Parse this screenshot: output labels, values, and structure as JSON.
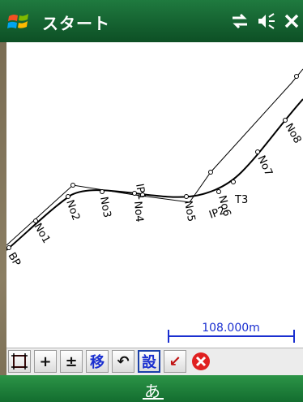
{
  "titlebar": {
    "title": "スタート",
    "status_icons": [
      "connectivity-icon",
      "speaker-icon",
      "close-icon"
    ]
  },
  "map": {
    "labels": [
      "BP",
      "No1",
      "No2",
      "No3",
      "IP1",
      "No4",
      "No5",
      "IP2",
      "No6",
      "T3",
      "No7",
      "No8"
    ],
    "scale_label": "108.000m"
  },
  "toolbar": {
    "tools": [
      {
        "name": "fit-extent-tool",
        "glyph": "⌗"
      },
      {
        "name": "zoom-in-tool",
        "glyph": "+"
      },
      {
        "name": "zoom-plusminus-tool",
        "glyph": "±"
      },
      {
        "name": "move-tool",
        "glyph": "移"
      },
      {
        "name": "undo-tool",
        "glyph": "↶"
      },
      {
        "name": "setting-tool",
        "glyph": "設"
      },
      {
        "name": "pointer-tool",
        "glyph": "↙"
      },
      {
        "name": "close-tool",
        "glyph": "✕"
      }
    ]
  },
  "softkey": {
    "ime_char": "あ"
  },
  "colors": {
    "titlebar": "#1f7a3f",
    "softbar": "#136d2f",
    "scale_bar": "#1a2fd0"
  }
}
